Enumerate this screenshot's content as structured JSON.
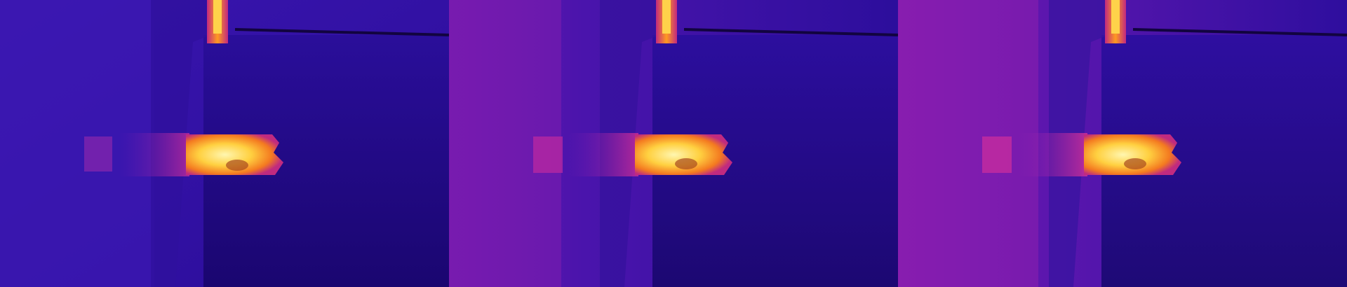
{
  "image": {
    "description_kind": "thermal-camera-frames",
    "panel_count": 3,
    "palette": {
      "cold": "#1c0a8a",
      "cool": "#3a12a8",
      "mid": "#7a1ab0",
      "warm": "#c0289a",
      "hot": "#f05a20",
      "hotter": "#f8a020",
      "hottest": "#fff3a0"
    }
  }
}
